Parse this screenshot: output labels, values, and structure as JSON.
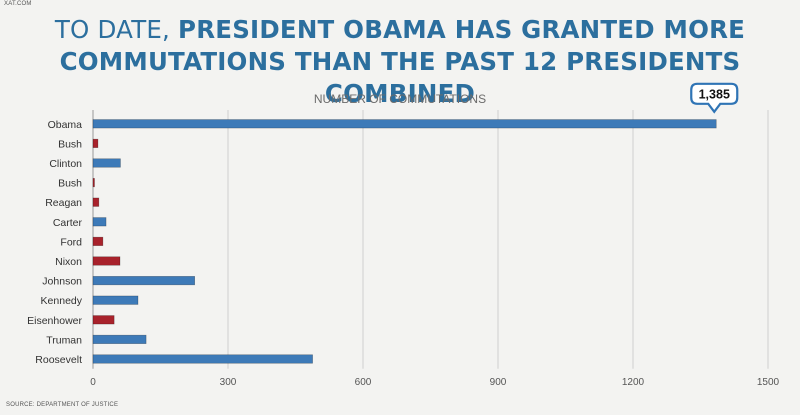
{
  "site_tag": "XAT.COM",
  "headline": {
    "part1": "TO DATE, ",
    "part2": "PRESIDENT OBAMA HAS GRANTED MORE",
    "line2": "COMMUTATIONS THAN THE PAST 12 PRESIDENTS COMBINED"
  },
  "source": "SOURCE: DEPARTMENT OF JUSTICE",
  "colors": {
    "democrat": "#3d7ab8",
    "republican": "#a8222b",
    "title_blue": "#2c6f9e",
    "grid": "#cfcfcf",
    "callout_border": "#2f74b5"
  },
  "chart_data": {
    "type": "bar",
    "orientation": "horizontal",
    "title": "NUMBER OF COMMUTATIONS",
    "categories": [
      "Obama",
      "Bush",
      "Clinton",
      "Bush",
      "Reagan",
      "Carter",
      "Ford",
      "Nixon",
      "Johnson",
      "Kennedy",
      "Eisenhower",
      "Truman",
      "Roosevelt"
    ],
    "values": [
      1385,
      11,
      61,
      3,
      13,
      29,
      22,
      60,
      226,
      100,
      47,
      118,
      488
    ],
    "party": [
      "D",
      "R",
      "D",
      "R",
      "R",
      "D",
      "R",
      "R",
      "D",
      "D",
      "R",
      "D",
      "D"
    ],
    "xlim": [
      0,
      1500
    ],
    "xticks": [
      0,
      300,
      600,
      900,
      1200,
      1500
    ],
    "grid": true,
    "callout": {
      "category": "Obama",
      "label": "1,385"
    }
  }
}
